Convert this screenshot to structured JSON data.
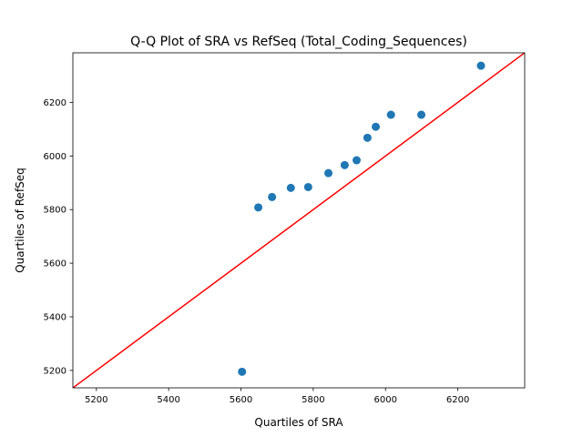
{
  "chart_data": {
    "type": "scatter",
    "title": "Q-Q Plot of SRA vs RefSeq (Total_Coding_Sequences)",
    "xlabel": "Quartiles of SRA",
    "ylabel": "Quartiles of RefSeq",
    "xlim": [
      5135,
      6385
    ],
    "ylim": [
      5135,
      6385
    ],
    "xticks": [
      5200,
      5400,
      5600,
      5800,
      6000,
      6200
    ],
    "yticks": [
      5200,
      5400,
      5600,
      5800,
      6000,
      6200
    ],
    "grid": false,
    "points": {
      "color": "#1f77b4",
      "x": [
        5603,
        5648,
        5686,
        5738,
        5786,
        5842,
        5887,
        5920,
        5950,
        5973,
        6015,
        6099,
        6264
      ],
      "y": [
        5195,
        5808,
        5847,
        5881,
        5884,
        5936,
        5966,
        5984,
        6068,
        6109,
        6154,
        6154,
        6337
      ]
    },
    "reference_line": {
      "color": "#ff0000",
      "x": [
        5135,
        6385
      ],
      "y": [
        5135,
        6385
      ]
    }
  }
}
